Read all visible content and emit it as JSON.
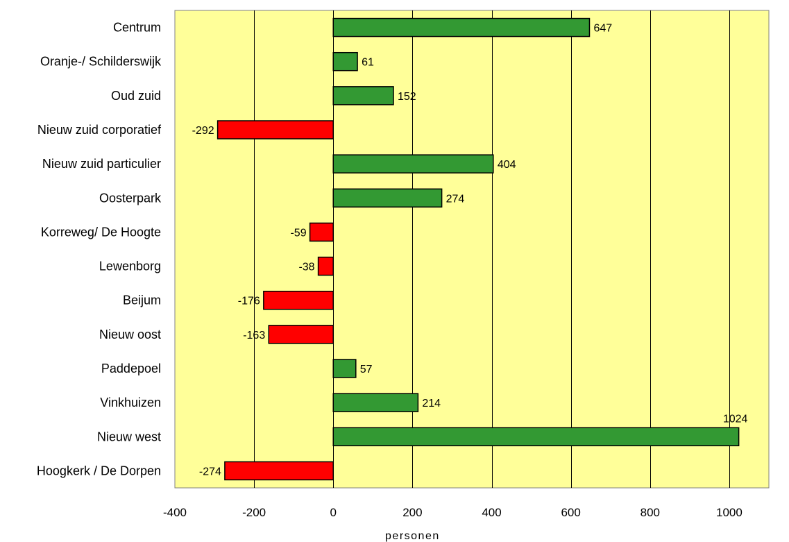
{
  "chart_data": {
    "type": "bar",
    "orientation": "horizontal",
    "categories": [
      "Centrum",
      "Oranje-/ Schilderswijk",
      "Oud zuid",
      "Nieuw zuid corporatief",
      "Nieuw zuid particulier",
      "Oosterpark",
      "Korreweg/ De Hoogte",
      "Lewenborg",
      "Beijum",
      "Nieuw oost",
      "Paddepoel",
      "Vinkhuizen",
      "Nieuw west",
      "Hoogkerk / De Dorpen"
    ],
    "values": [
      647,
      61,
      152,
      -292,
      404,
      274,
      -59,
      -38,
      -176,
      -163,
      57,
      214,
      1024,
      -274
    ],
    "data_labels": [
      "647",
      "61",
      "152",
      "-292",
      "404",
      "274",
      "-59",
      "-38",
      "-176",
      "-163",
      "57",
      "214",
      "1024",
      "-274"
    ],
    "xlabel": "personen",
    "xlim": [
      -400,
      1100
    ],
    "x_ticks": [
      -400,
      -200,
      0,
      200,
      400,
      600,
      800,
      1000
    ],
    "x_tick_labels": [
      "-400",
      "-200",
      "0",
      "200",
      "400",
      "600",
      "800",
      "1000"
    ],
    "grid": "vertical",
    "colors": {
      "positive": "#339933",
      "negative": "#ff0000",
      "plot_background": "#ffff99",
      "gridline": "#000000"
    }
  }
}
